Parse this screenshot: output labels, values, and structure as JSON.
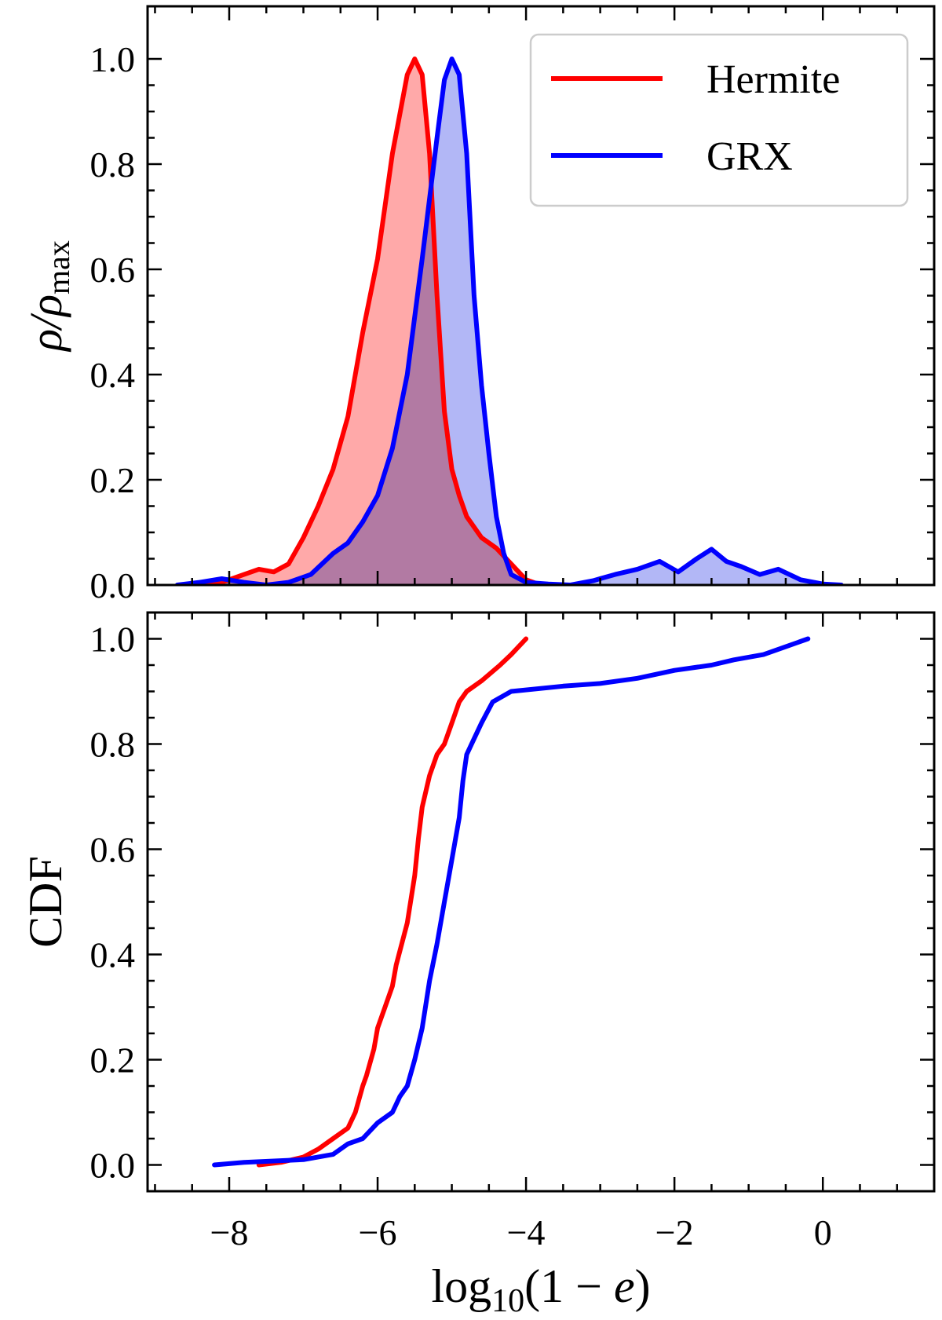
{
  "chart_data": [
    {
      "type": "area",
      "ylabel": "ρ/ρmax",
      "xlim": [
        -9.1,
        1.5
      ],
      "ylim": [
        0,
        1.1
      ],
      "xticks_labeled": false,
      "yticks": [
        "0.0",
        "0.2",
        "0.4",
        "0.6",
        "0.8",
        "1.0"
      ],
      "legend": {
        "placement": "top-right",
        "entries": [
          "Hermite",
          "GRX"
        ]
      },
      "series": [
        {
          "name": "Hermite",
          "color": "#ff0000",
          "fill": "#ff9a9a",
          "x": [
            -8.4,
            -8.1,
            -7.8,
            -7.6,
            -7.4,
            -7.2,
            -7.0,
            -6.8,
            -6.6,
            -6.4,
            -6.2,
            -6.0,
            -5.8,
            -5.6,
            -5.5,
            -5.4,
            -5.3,
            -5.2,
            -5.1,
            -5.0,
            -4.9,
            -4.8,
            -4.6,
            -4.4,
            -4.2,
            -4.0,
            -3.8,
            -3.6
          ],
          "values": [
            0.0,
            0.005,
            0.02,
            0.03,
            0.025,
            0.04,
            0.09,
            0.15,
            0.22,
            0.32,
            0.48,
            0.62,
            0.82,
            0.97,
            1.0,
            0.97,
            0.82,
            0.55,
            0.33,
            0.22,
            0.17,
            0.13,
            0.09,
            0.07,
            0.04,
            0.01,
            0.0,
            0.0
          ]
        },
        {
          "name": "GRX",
          "color": "#0000ff",
          "fill": "#a5aaf5",
          "x": [
            -8.7,
            -8.4,
            -8.1,
            -7.8,
            -7.5,
            -7.2,
            -6.9,
            -6.6,
            -6.4,
            -6.2,
            -6.0,
            -5.8,
            -5.6,
            -5.4,
            -5.2,
            -5.1,
            -5.0,
            -4.9,
            -4.8,
            -4.7,
            -4.6,
            -4.5,
            -4.4,
            -4.3,
            -4.2,
            -4.0,
            -3.7,
            -3.4,
            -3.1,
            -2.8,
            -2.5,
            -2.2,
            -1.95,
            -1.7,
            -1.5,
            -1.3,
            -1.1,
            -0.85,
            -0.6,
            -0.3,
            0.0,
            0.25
          ],
          "values": [
            0.0,
            0.005,
            0.012,
            0.005,
            0.0,
            0.005,
            0.02,
            0.06,
            0.08,
            0.12,
            0.17,
            0.26,
            0.4,
            0.62,
            0.85,
            0.96,
            1.0,
            0.97,
            0.82,
            0.55,
            0.38,
            0.25,
            0.13,
            0.06,
            0.02,
            0.005,
            0.002,
            0.0,
            0.008,
            0.02,
            0.03,
            0.045,
            0.025,
            0.05,
            0.068,
            0.045,
            0.035,
            0.02,
            0.03,
            0.01,
            0.002,
            0.0
          ]
        }
      ]
    },
    {
      "type": "line",
      "xlabel": "log10(1 − e)",
      "ylabel": "CDF",
      "xlim": [
        -9.1,
        1.5
      ],
      "ylim": [
        -0.05,
        1.05
      ],
      "xticks": [
        "−8",
        "−6",
        "−4",
        "−2",
        "0"
      ],
      "yticks": [
        "0.0",
        "0.2",
        "0.4",
        "0.6",
        "0.8",
        "1.0"
      ],
      "series": [
        {
          "name": "Hermite",
          "color": "#ff0000",
          "x": [
            -7.6,
            -7.3,
            -7.0,
            -6.8,
            -6.6,
            -6.4,
            -6.3,
            -6.2,
            -6.15,
            -6.05,
            -6.0,
            -5.9,
            -5.8,
            -5.75,
            -5.6,
            -5.5,
            -5.45,
            -5.4,
            -5.3,
            -5.2,
            -5.1,
            -5.0,
            -4.9,
            -4.8,
            -4.6,
            -4.35,
            -4.2,
            -4.0
          ],
          "values": [
            0.0,
            0.005,
            0.015,
            0.03,
            0.05,
            0.07,
            0.1,
            0.15,
            0.17,
            0.22,
            0.26,
            0.3,
            0.34,
            0.38,
            0.46,
            0.55,
            0.62,
            0.68,
            0.74,
            0.78,
            0.8,
            0.84,
            0.88,
            0.9,
            0.92,
            0.95,
            0.97,
            1.0
          ]
        },
        {
          "name": "GRX",
          "color": "#0000ff",
          "x": [
            -8.2,
            -7.8,
            -7.0,
            -6.6,
            -6.4,
            -6.2,
            -6.0,
            -5.8,
            -5.7,
            -5.6,
            -5.5,
            -5.4,
            -5.3,
            -5.2,
            -5.1,
            -5.0,
            -4.9,
            -4.85,
            -4.8,
            -4.7,
            -4.6,
            -4.45,
            -4.2,
            -3.5,
            -3.0,
            -2.5,
            -2.0,
            -1.5,
            -1.2,
            -0.8,
            -0.5,
            -0.2
          ],
          "values": [
            0.0,
            0.005,
            0.01,
            0.02,
            0.04,
            0.05,
            0.08,
            0.1,
            0.13,
            0.15,
            0.2,
            0.26,
            0.35,
            0.42,
            0.5,
            0.58,
            0.66,
            0.73,
            0.78,
            0.81,
            0.84,
            0.88,
            0.9,
            0.91,
            0.915,
            0.925,
            0.94,
            0.95,
            0.96,
            0.97,
            0.985,
            1.0
          ]
        }
      ]
    }
  ]
}
